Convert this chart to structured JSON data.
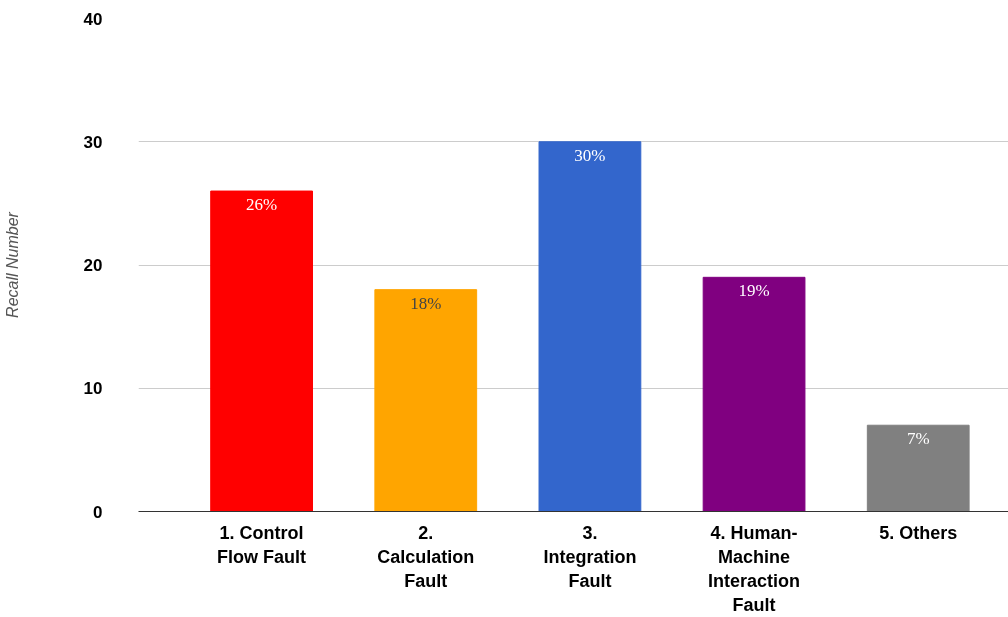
{
  "chart_data": {
    "type": "bar",
    "ylabel": "Recall Number",
    "categories": [
      "1. Control Flow Fault",
      "2. Calculation Fault",
      "3. Integration Fault",
      "4. Human-Machine Interaction Fault",
      "5. Others"
    ],
    "values": [
      26,
      18,
      30,
      19,
      7
    ],
    "colors": [
      "#ff0000",
      "#ffa500",
      "#3366cc",
      "#800080",
      "#808080"
    ],
    "value_labels": [
      "26%",
      "18%",
      "30%",
      "19%",
      "7%"
    ],
    "ylim": [
      0,
      40
    ],
    "yticks": [
      0,
      10,
      20,
      30,
      40
    ],
    "grid": "y"
  }
}
